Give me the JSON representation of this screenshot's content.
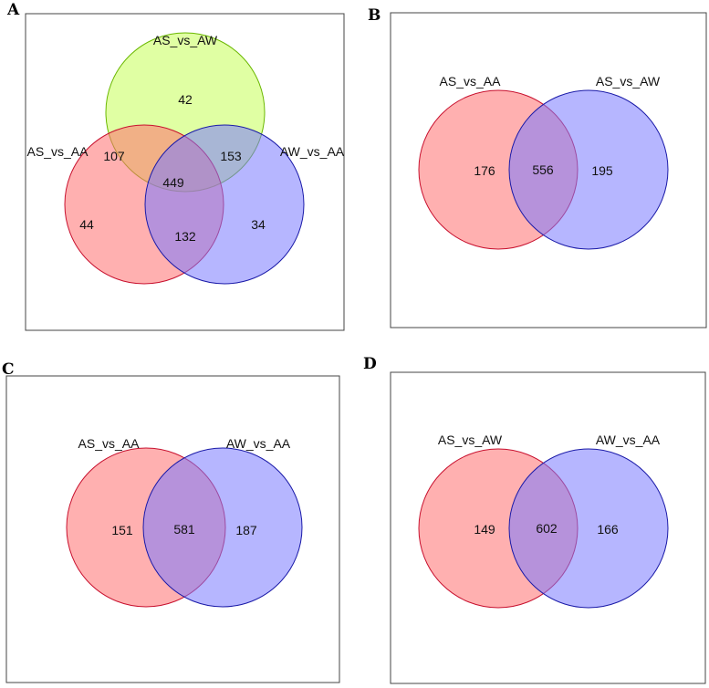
{
  "colors": {
    "red_fill": "#ff6f6f",
    "red_stroke": "#c8102e",
    "blue_fill": "#7a7aff",
    "blue_stroke": "#1a1aa8",
    "green_fill": "#ccff66",
    "green_stroke": "#6ab800"
  },
  "panels": {
    "A": {
      "letter": "A",
      "sets": {
        "top": "AS_vs_AW",
        "left": "AS_vs_AA",
        "right": "AW_vs_AA"
      },
      "counts": {
        "top_only": "42",
        "left_top": "107",
        "right_top": "153",
        "center": "449",
        "left_only": "44",
        "left_right": "132",
        "right_only": "34"
      }
    },
    "B": {
      "letter": "B",
      "sets": {
        "left": "AS_vs_AA",
        "right": "AS_vs_AW"
      },
      "counts": {
        "left_only": "176",
        "overlap": "556",
        "right_only": "195"
      }
    },
    "C": {
      "letter": "C",
      "sets": {
        "left": "AS_vs_AA",
        "right": "AW_vs_AA"
      },
      "counts": {
        "left_only": "151",
        "overlap": "581",
        "right_only": "187"
      }
    },
    "D": {
      "letter": "D",
      "sets": {
        "left": "AS_vs_AW",
        "right": "AW_vs_AA"
      },
      "counts": {
        "left_only": "149",
        "overlap": "602",
        "right_only": "166"
      }
    }
  }
}
